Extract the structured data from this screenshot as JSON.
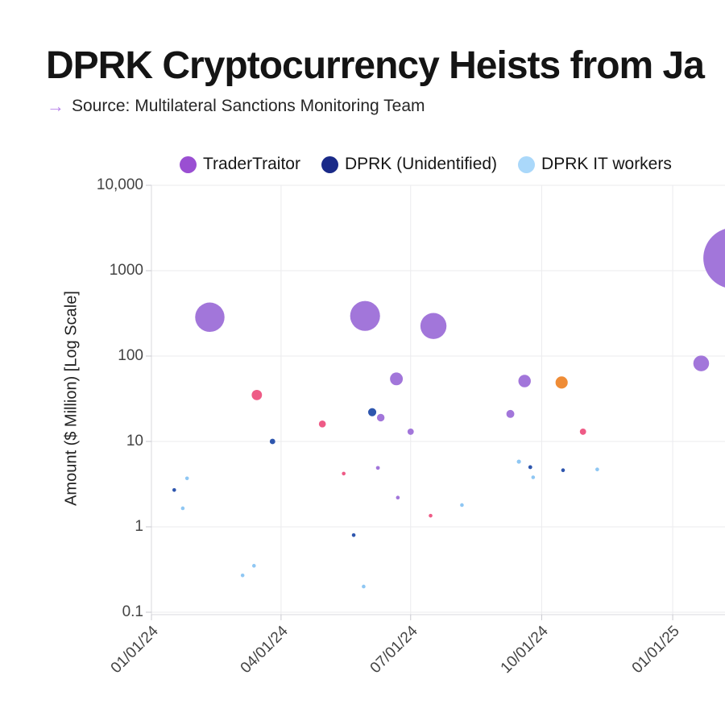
{
  "header": {
    "title": "DPRK Cryptocurrency Heists from Ja",
    "source_prefix": "→",
    "source": "Source: Multilateral Sanctions Monitoring Team"
  },
  "legend": {
    "items": [
      {
        "label": "TraderTraitor",
        "color": "#9a4fd2"
      },
      {
        "label": "DPRK (Unidentified)",
        "color": "#1a2a88"
      },
      {
        "label": "DPRK IT workers",
        "color": "#aad8fa"
      }
    ]
  },
  "chart_data": {
    "type": "scatter",
    "title": "DPRK Cryptocurrency Heists from Ja",
    "subtitle": "Source: Multilateral Sanctions Monitoring Team",
    "xlabel": "",
    "ylabel": "Amount ($ Million) [Log Scale]",
    "y_scale": "log",
    "ylim": [
      0.1,
      10000
    ],
    "grid": true,
    "legend_position": "top",
    "x_unit": "days since 01/01/24",
    "x_ticks": [
      {
        "label": "01/01/24",
        "day": 0
      },
      {
        "label": "04/01/24",
        "day": 91
      },
      {
        "label": "07/01/24",
        "day": 182
      },
      {
        "label": "10/01/24",
        "day": 274
      },
      {
        "label": "01/01/25",
        "day": 366
      }
    ],
    "y_ticks": [
      {
        "label": "10,000",
        "value": 10000
      },
      {
        "label": "1000",
        "value": 1000
      },
      {
        "label": "100",
        "value": 100
      },
      {
        "label": "10",
        "value": 10
      },
      {
        "label": "1",
        "value": 1
      },
      {
        "label": "0.1",
        "value": 0.1
      }
    ],
    "series": [
      {
        "name": "TraderTraitor",
        "color": "#a276da",
        "in_legend": true,
        "points": [
          {
            "day": 41,
            "amount": 285
          },
          {
            "day": 150,
            "amount": 295
          },
          {
            "day": 198,
            "amount": 225
          },
          {
            "day": 172,
            "amount": 54
          },
          {
            "day": 161,
            "amount": 19
          },
          {
            "day": 182,
            "amount": 13
          },
          {
            "day": 262,
            "amount": 51
          },
          {
            "day": 252,
            "amount": 21
          },
          {
            "day": 159,
            "amount": 4.9
          },
          {
            "day": 173,
            "amount": 2.2
          },
          {
            "day": 386,
            "amount": 82
          },
          {
            "day": 409,
            "amount": 1400
          }
        ]
      },
      {
        "name": "DPRK (Unidentified)",
        "color": "#2e56ae",
        "in_legend": true,
        "points": [
          {
            "day": 85,
            "amount": 10
          },
          {
            "day": 155,
            "amount": 22
          },
          {
            "day": 16,
            "amount": 2.7
          },
          {
            "day": 142,
            "amount": 0.8
          },
          {
            "day": 266,
            "amount": 5.0
          },
          {
            "day": 289,
            "amount": 4.6
          }
        ]
      },
      {
        "name": "DPRK IT workers",
        "color": "#8fc7f3",
        "in_legend": true,
        "points": [
          {
            "day": 25,
            "amount": 3.7
          },
          {
            "day": 22,
            "amount": 1.65
          },
          {
            "day": 72,
            "amount": 0.35
          },
          {
            "day": 64,
            "amount": 0.27
          },
          {
            "day": 149,
            "amount": 0.2
          },
          {
            "day": 218,
            "amount": 1.8
          },
          {
            "day": 258,
            "amount": 5.8
          },
          {
            "day": 268,
            "amount": 3.8
          },
          {
            "day": 313,
            "amount": 4.7
          }
        ]
      },
      {
        "name": "",
        "color": "#ee5b86",
        "in_legend": false,
        "points": [
          {
            "day": 74,
            "amount": 35
          },
          {
            "day": 120,
            "amount": 16
          },
          {
            "day": 135,
            "amount": 4.2
          },
          {
            "day": 196,
            "amount": 1.35
          },
          {
            "day": 303,
            "amount": 13
          }
        ]
      },
      {
        "name": "",
        "color": "#ef8c36",
        "in_legend": false,
        "points": [
          {
            "day": 288,
            "amount": 49
          }
        ]
      }
    ]
  }
}
